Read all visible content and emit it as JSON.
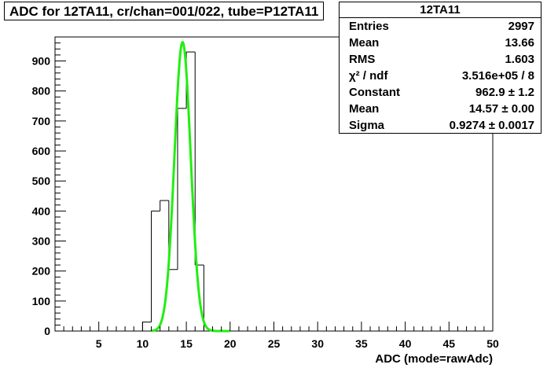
{
  "title": "ADC for 12TA11,  cr/chan=001/022,  tube=P12TA11",
  "stats": {
    "name": "12TA11",
    "rows": [
      {
        "label": "Entries",
        "value": "2997"
      },
      {
        "label": "Mean",
        "value": "13.66"
      },
      {
        "label": "RMS",
        "value": "1.603"
      },
      {
        "label": "χ² / ndf",
        "value": "3.516e+05 / 8"
      },
      {
        "label": "Constant",
        "value": "962.9 ± 1.2"
      },
      {
        "label": "Mean",
        "value": "14.57 ± 0.00"
      },
      {
        "label": "Sigma",
        "value": "0.9274 ± 0.0017"
      }
    ]
  },
  "colors": {
    "histogram": "#000000",
    "fit": "#22ee11"
  },
  "chart_data": {
    "type": "line",
    "xlabel": "ADC (mode=rawAdc)",
    "ylabel": "",
    "xlim": [
      0,
      50
    ],
    "ylim": [
      0,
      980
    ],
    "x_ticks": [
      5,
      10,
      15,
      20,
      25,
      30,
      35,
      40,
      45,
      50
    ],
    "y_ticks": [
      0,
      100,
      200,
      300,
      400,
      500,
      600,
      700,
      800,
      900
    ],
    "histogram": {
      "bin_width": 1,
      "bins": [
        {
          "x": 9,
          "y": 0
        },
        {
          "x": 10,
          "y": 30
        },
        {
          "x": 11,
          "y": 400
        },
        {
          "x": 12,
          "y": 435
        },
        {
          "x": 13,
          "y": 205
        },
        {
          "x": 14,
          "y": 742
        },
        {
          "x": 15,
          "y": 930
        },
        {
          "x": 16,
          "y": 220
        },
        {
          "x": 17,
          "y": 0
        }
      ]
    },
    "fit": {
      "function": "gaus",
      "constant": 962.9,
      "mean": 14.57,
      "sigma": 0.9274,
      "range": [
        11,
        20
      ]
    }
  }
}
